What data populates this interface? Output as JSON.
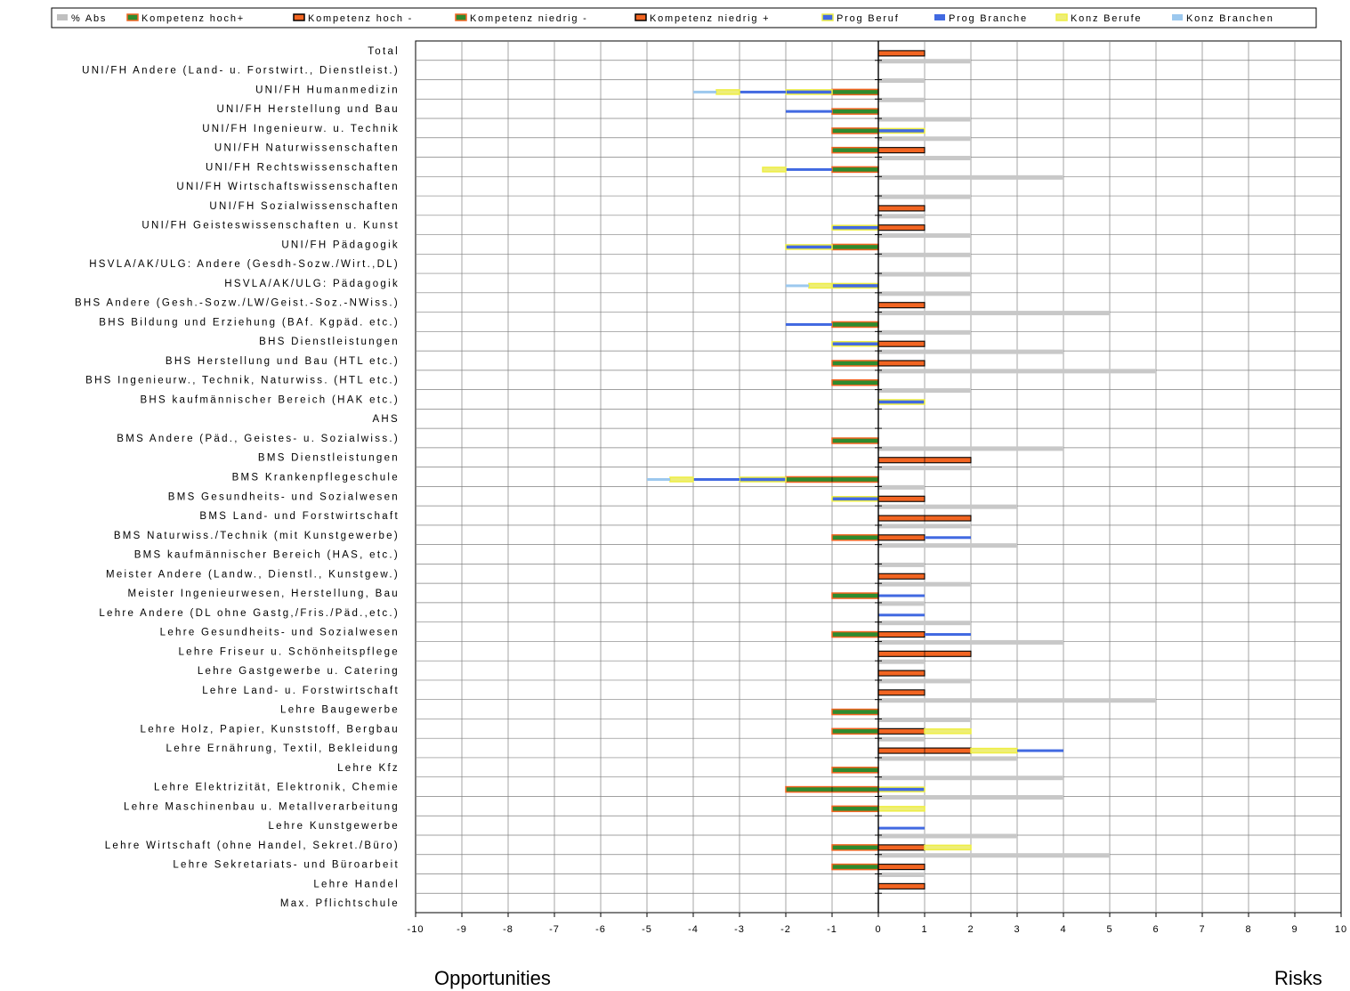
{
  "bottom_labels": {
    "left": "Opportunities",
    "right": "Risks"
  },
  "chart_data": {
    "type": "bar",
    "orientation": "horizontal",
    "xlim": [
      -10,
      10
    ],
    "xticks": [
      "-10",
      "-9",
      "-8",
      "-7",
      "-6",
      "-5",
      "-4",
      "-3",
      "-2",
      "-1",
      "0",
      "1",
      "2",
      "3",
      "4",
      "5",
      "6",
      "7",
      "8",
      "9",
      "10"
    ],
    "grid": true,
    "legend_position": "top",
    "series": [
      {
        "name": "% Abs",
        "color": "#c0c0c0",
        "style": "plain"
      },
      {
        "name": "Kompetenz hoch+",
        "color": "#2e8b2e",
        "style": "outlined-orange"
      },
      {
        "name": "Kompetenz hoch -",
        "color": "#f26522",
        "style": "outlined-black"
      },
      {
        "name": "Kompetenz niedrig -",
        "color": "#2e8b2e",
        "style": "outlined-orange"
      },
      {
        "name": "Kompetenz niedrig +",
        "color": "#f26522",
        "style": "outlined-black"
      },
      {
        "name": "Prog Beruf",
        "color": "#4169e1",
        "style": "outlined-yellow"
      },
      {
        "name": "Prog Branche",
        "color": "#4169e1",
        "style": "plain"
      },
      {
        "name": "Konz Berufe",
        "color": "#eeee77",
        "style": "outlined-yellow"
      },
      {
        "name": "Konz Branchen",
        "color": "#9cc8ee",
        "style": "plain"
      }
    ],
    "categories": [
      {
        "label": "Total",
        "abs": 2,
        "bars": [
          {
            "s": "kh",
            "from": 0,
            "to": 1
          }
        ]
      },
      {
        "label": "UNI/FH Andere (Land- u. Forstwirt., Dienstleist.)",
        "abs": 1,
        "bars": []
      },
      {
        "label": "UNI/FH Humanmedizin",
        "abs": 1,
        "bars": [
          {
            "s": "kn",
            "from": -1,
            "to": 0
          },
          {
            "s": "pb",
            "from": -2,
            "to": -1
          },
          {
            "s": "pbr",
            "from": -3,
            "to": -2
          },
          {
            "s": "kb",
            "from": -3.5,
            "to": -3
          },
          {
            "s": "kbr",
            "from": -4,
            "to": -3.5
          }
        ]
      },
      {
        "label": "UNI/FH Herstellung und Bau",
        "abs": 2,
        "bars": [
          {
            "s": "kn",
            "from": -1,
            "to": 0
          },
          {
            "s": "pbr",
            "from": -2,
            "to": -1
          }
        ]
      },
      {
        "label": "UNI/FH Ingenieurw. u. Technik",
        "abs": 2,
        "bars": [
          {
            "s": "kn",
            "from": -1,
            "to": 0
          },
          {
            "s": "pb",
            "from": 0,
            "to": 1
          }
        ]
      },
      {
        "label": "UNI/FH Naturwissenschaften",
        "abs": 2,
        "bars": [
          {
            "s": "kn",
            "from": -1,
            "to": 0
          },
          {
            "s": "kh",
            "from": 0,
            "to": 1
          }
        ]
      },
      {
        "label": "UNI/FH Rechtswissenschaften",
        "abs": 4,
        "bars": [
          {
            "s": "kn",
            "from": -1,
            "to": 0
          },
          {
            "s": "pbr",
            "from": -2,
            "to": -1
          },
          {
            "s": "kb",
            "from": -2.5,
            "to": -2
          }
        ]
      },
      {
        "label": "UNI/FH Wirtschaftswissenschaften",
        "abs": 2,
        "bars": []
      },
      {
        "label": "UNI/FH Sozialwissenschaften",
        "abs": 1,
        "bars": [
          {
            "s": "kh",
            "from": 0,
            "to": 1
          }
        ]
      },
      {
        "label": "UNI/FH Geisteswissenschaften u. Kunst",
        "abs": 2,
        "bars": [
          {
            "s": "kh",
            "from": 0,
            "to": 1
          },
          {
            "s": "pb",
            "from": -1,
            "to": 0
          }
        ]
      },
      {
        "label": "UNI/FH Pädagogik",
        "abs": 2,
        "bars": [
          {
            "s": "kn",
            "from": -1,
            "to": 0
          },
          {
            "s": "pb",
            "from": -2,
            "to": -1
          }
        ]
      },
      {
        "label": "HSVLA/AK/ULG: Andere (Gesdh-Sozw./Wirt.,DL)",
        "abs": 2,
        "bars": []
      },
      {
        "label": "HSVLA/AK/ULG: Pädagogik",
        "abs": 2,
        "bars": [
          {
            "s": "pb",
            "from": -1,
            "to": 0
          },
          {
            "s": "kb",
            "from": -1.5,
            "to": -1
          },
          {
            "s": "kbr",
            "from": -2,
            "to": -1.5
          }
        ]
      },
      {
        "label": "BHS Andere (Gesh.-Sozw./LW/Geist.-Soz.-NWiss.)",
        "abs": 5,
        "bars": [
          {
            "s": "kh",
            "from": 0,
            "to": 1
          }
        ]
      },
      {
        "label": "BHS Bildung und Erziehung (BAf. Kgpäd. etc.)",
        "abs": 2,
        "bars": [
          {
            "s": "kn",
            "from": -1,
            "to": 0
          },
          {
            "s": "pbr",
            "from": -2,
            "to": -1
          }
        ]
      },
      {
        "label": "BHS Dienstleistungen",
        "abs": 4,
        "bars": [
          {
            "s": "kh",
            "from": 0,
            "to": 1
          },
          {
            "s": "pb",
            "from": -1,
            "to": 0
          }
        ]
      },
      {
        "label": "BHS Herstellung und Bau (HTL etc.)",
        "abs": 6,
        "bars": [
          {
            "s": "kn",
            "from": -1,
            "to": 0
          },
          {
            "s": "kh",
            "from": 0,
            "to": 1
          }
        ]
      },
      {
        "label": "BHS Ingenieurw., Technik, Naturwiss. (HTL etc.)",
        "abs": 2,
        "bars": [
          {
            "s": "kn",
            "from": -1,
            "to": 0
          }
        ]
      },
      {
        "label": "BHS kaufmännischer Bereich (HAK etc.)",
        "abs": 0,
        "bars": [
          {
            "s": "pb",
            "from": 0,
            "to": 1
          }
        ]
      },
      {
        "label": "AHS",
        "abs": 0,
        "bars": []
      },
      {
        "label": "BMS Andere (Päd., Geistes- u. Sozialwiss.)",
        "abs": 4,
        "bars": [
          {
            "s": "kn",
            "from": -1,
            "to": 0
          }
        ]
      },
      {
        "label": "BMS Dienstleistungen",
        "abs": 2,
        "bars": [
          {
            "s": "kh",
            "from": 0,
            "to": 2
          }
        ]
      },
      {
        "label": "BMS Krankenpflegeschule",
        "abs": 1,
        "bars": [
          {
            "s": "kn",
            "from": -2,
            "to": 0
          },
          {
            "s": "pb",
            "from": -3,
            "to": -2
          },
          {
            "s": "pbr",
            "from": -4,
            "to": -3
          },
          {
            "s": "kb",
            "from": -4.5,
            "to": -4
          },
          {
            "s": "kbr",
            "from": -5,
            "to": -4.5
          }
        ]
      },
      {
        "label": "BMS Gesundheits- und Sozialwesen",
        "abs": 3,
        "bars": [
          {
            "s": "kh",
            "from": 0,
            "to": 1
          },
          {
            "s": "pb",
            "from": -1,
            "to": 0
          }
        ]
      },
      {
        "label": "BMS Land- und Forstwirtschaft",
        "abs": 2,
        "bars": [
          {
            "s": "kh",
            "from": 0,
            "to": 2
          }
        ]
      },
      {
        "label": "BMS Naturwiss./Technik (mit Kunstgewerbe)",
        "abs": 3,
        "bars": [
          {
            "s": "kn",
            "from": -1,
            "to": 0
          },
          {
            "s": "kh",
            "from": 0,
            "to": 1
          },
          {
            "s": "pbr",
            "from": 1,
            "to": 2
          }
        ]
      },
      {
        "label": "BMS kaufmännischer Bereich (HAS, etc.)",
        "abs": 1,
        "bars": []
      },
      {
        "label": "Meister Andere (Landw., Dienstl., Kunstgew.)",
        "abs": 2,
        "bars": [
          {
            "s": "kh",
            "from": 0,
            "to": 1
          }
        ]
      },
      {
        "label": "Meister Ingenieurwesen, Herstellung, Bau",
        "abs": 1,
        "bars": [
          {
            "s": "kn",
            "from": -1,
            "to": 0
          },
          {
            "s": "pbr",
            "from": 0,
            "to": 1
          }
        ]
      },
      {
        "label": "Lehre Andere (DL ohne Gastg,/Fris./Päd.,etc.)",
        "abs": 2,
        "bars": [
          {
            "s": "pbr",
            "from": 0,
            "to": 1
          }
        ]
      },
      {
        "label": "Lehre Gesundheits- und Sozialwesen",
        "abs": 4,
        "bars": [
          {
            "s": "kn",
            "from": -1,
            "to": 0
          },
          {
            "s": "kh",
            "from": 0,
            "to": 1
          },
          {
            "s": "pbr",
            "from": 1,
            "to": 2
          }
        ]
      },
      {
        "label": "Lehre Friseur u. Schönheitspflege",
        "abs": 1,
        "bars": [
          {
            "s": "kh",
            "from": 0,
            "to": 2
          }
        ]
      },
      {
        "label": "Lehre Gastgewerbe u. Catering",
        "abs": 2,
        "bars": [
          {
            "s": "kh",
            "from": 0,
            "to": 1
          }
        ]
      },
      {
        "label": "Lehre Land- u. Forstwirtschaft",
        "abs": 6,
        "bars": [
          {
            "s": "kh",
            "from": 0,
            "to": 1
          }
        ]
      },
      {
        "label": "Lehre Baugewerbe",
        "abs": 2,
        "bars": [
          {
            "s": "kn",
            "from": -1,
            "to": 0
          }
        ]
      },
      {
        "label": "Lehre Holz, Papier, Kunststoff, Bergbau",
        "abs": 1,
        "bars": [
          {
            "s": "kn",
            "from": -1,
            "to": 0
          },
          {
            "s": "kh",
            "from": 0,
            "to": 1
          },
          {
            "s": "kb",
            "from": 1,
            "to": 2
          }
        ]
      },
      {
        "label": "Lehre Ernährung, Textil, Bekleidung",
        "abs": 3,
        "bars": [
          {
            "s": "kh",
            "from": 0,
            "to": 2
          },
          {
            "s": "kb",
            "from": 2,
            "to": 3
          },
          {
            "s": "pbr",
            "from": 3,
            "to": 4
          }
        ]
      },
      {
        "label": "Lehre Kfz",
        "abs": 4,
        "bars": [
          {
            "s": "kn",
            "from": -1,
            "to": 0
          }
        ]
      },
      {
        "label": "Lehre Elektrizität, Elektronik, Chemie",
        "abs": 4,
        "bars": [
          {
            "s": "kn",
            "from": -2,
            "to": 0
          },
          {
            "s": "pb",
            "from": 0,
            "to": 1
          }
        ]
      },
      {
        "label": "Lehre Maschinenbau u. Metallverarbeitung",
        "abs": 0,
        "bars": [
          {
            "s": "kn",
            "from": -1,
            "to": 0
          },
          {
            "s": "kb",
            "from": 0,
            "to": 1
          }
        ]
      },
      {
        "label": "Lehre Kunstgewerbe",
        "abs": 3,
        "bars": [
          {
            "s": "pbr",
            "from": 0,
            "to": 1
          }
        ]
      },
      {
        "label": "Lehre Wirtschaft (ohne Handel, Sekret./Büro)",
        "abs": 5,
        "bars": [
          {
            "s": "kn",
            "from": -1,
            "to": 0
          },
          {
            "s": "kh",
            "from": 0,
            "to": 1
          },
          {
            "s": "kb",
            "from": 1,
            "to": 2
          }
        ]
      },
      {
        "label": "Lehre Sekretariats- und Büroarbeit",
        "abs": 1,
        "bars": [
          {
            "s": "kn",
            "from": -1,
            "to": 0
          },
          {
            "s": "kh",
            "from": 0,
            "to": 1
          }
        ]
      },
      {
        "label": "Lehre Handel",
        "abs": 0,
        "bars": [
          {
            "s": "kh",
            "from": 0,
            "to": 1
          }
        ]
      },
      {
        "label": "Max. Pflichtschule",
        "abs": 0,
        "bars": []
      }
    ]
  }
}
